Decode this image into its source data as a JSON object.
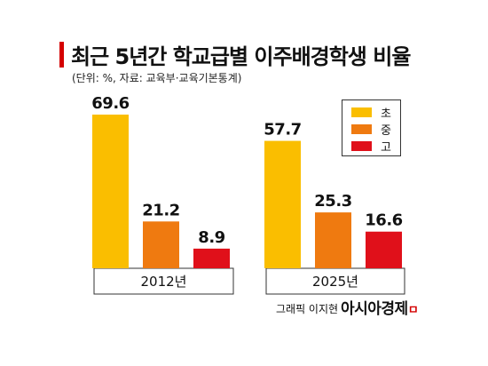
{
  "header": {
    "title": "최근 5년간 학교급별 이주배경학생 비율",
    "subtitle": "(단위: %, 자료: 교육부·교육기본통계)"
  },
  "colors": {
    "accent": "#d40000",
    "elementary": "#fabe00",
    "middle": "#ef7a10",
    "high": "#e0101a"
  },
  "chart_data": {
    "type": "bar",
    "categories": [
      "2012년",
      "2025년"
    ],
    "series": [
      {
        "name": "초",
        "values": [
          69.6,
          57.7
        ],
        "color": "#fabe00"
      },
      {
        "name": "중",
        "values": [
          21.2,
          25.3
        ],
        "color": "#ef7a10"
      },
      {
        "name": "고",
        "values": [
          8.9,
          16.6
        ],
        "color": "#e0101a"
      }
    ],
    "title": "최근 5년간 학교급별 이주배경학생 비율",
    "subtitle": "(단위: %, 자료: 교육부·교육기본통계)",
    "ylim": [
      0,
      69.6
    ],
    "grid": false,
    "legend": "top-right"
  },
  "legend": {
    "items": [
      {
        "label": "초",
        "color": "#fabe00"
      },
      {
        "label": "중",
        "color": "#ef7a10"
      },
      {
        "label": "고",
        "color": "#e0101a"
      }
    ]
  },
  "footer": {
    "credit": "그래픽 이지현",
    "brand": "아시아경제",
    "brand_mark": "ㅁ"
  }
}
